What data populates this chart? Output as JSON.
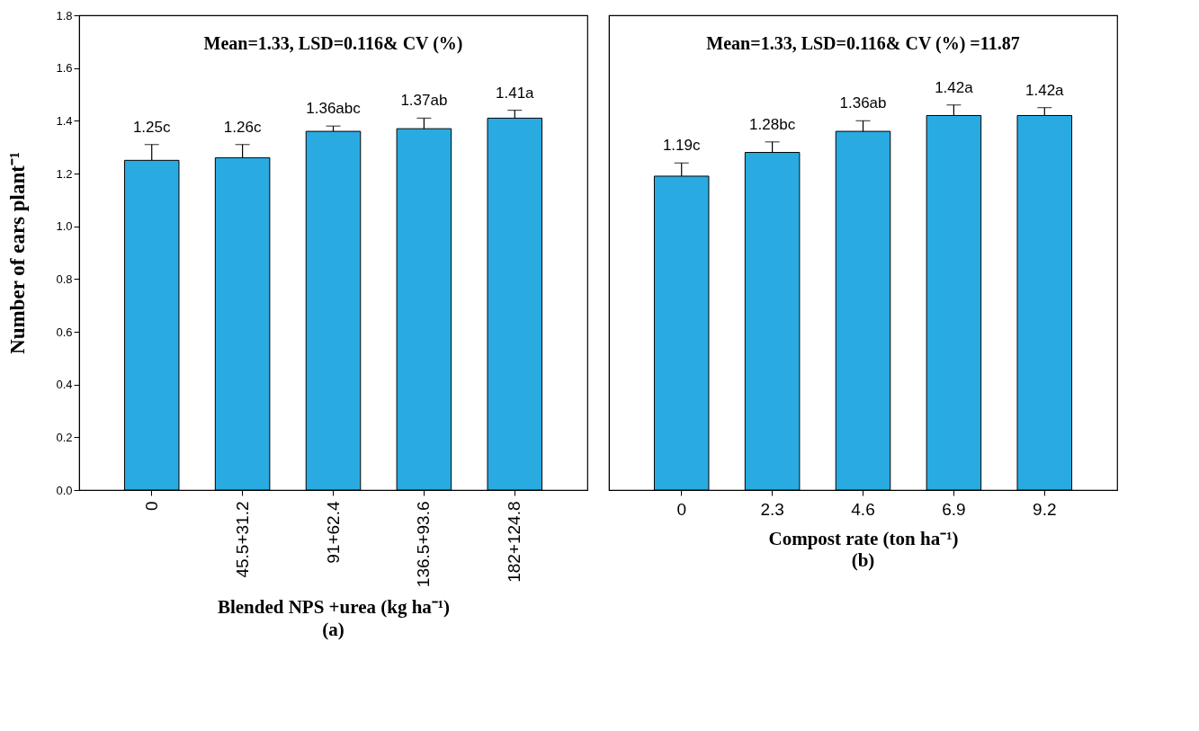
{
  "chart_data": [
    {
      "type": "bar",
      "title": "(a)",
      "xlabel": "Blended NPS +urea (kg ha⁻¹)",
      "ylabel": "Number of ears plant⁻¹",
      "categories": [
        "0",
        "45.5+31.2",
        "91+62.4",
        "136.5+93.6",
        "182+124.8"
      ],
      "series": [
        {
          "color": "#29abe2",
          "values": [
            1.25,
            1.26,
            1.36,
            1.37,
            1.41
          ],
          "errors": [
            [
              1.25,
              1.31
            ],
            [
              1.26,
              1.31
            ],
            [
              1.36,
              1.38
            ],
            [
              1.37,
              1.41
            ],
            [
              1.41,
              1.44
            ]
          ],
          "value_labels": [
            "1.25c",
            "1.26c",
            "1.36abc",
            "1.37ab",
            "1.41a"
          ]
        }
      ],
      "ylim": [
        0,
        1.8
      ],
      "yticks": [
        {
          "value": 0,
          "label": "0.0"
        },
        0.2,
        0.4,
        0.6,
        0.8,
        {
          "value": 1,
          "label": "1.0"
        },
        1.2,
        1.4,
        1.6,
        1.8
      ],
      "annotations": [
        "Mean=1.33, LSD=0.116& CV (%)"
      ],
      "grid": false
    },
    {
      "type": "bar",
      "title": "(b)",
      "xlabel": "Compost rate (ton ha⁻¹)",
      "categories": [
        "0",
        "2.3",
        "4.6",
        "6.9",
        "9.2"
      ],
      "series": [
        {
          "color": "#29abe2",
          "values": [
            1.19,
            1.28,
            1.36,
            1.42,
            1.42
          ],
          "errors": [
            [
              1.19,
              1.24
            ],
            [
              1.28,
              1.32
            ],
            [
              1.36,
              1.4
            ],
            [
              1.42,
              1.46
            ],
            [
              1.42,
              1.45
            ]
          ],
          "value_labels": [
            "1.19c",
            "1.28bc",
            "1.36ab",
            "1.42a",
            "1.42a"
          ]
        }
      ],
      "ylim": [
        0,
        1.8
      ],
      "tick_labels": "x",
      "annotations": [
        "Mean=1.33, LSD=0.116& CV (%) =11.87"
      ],
      "grid": false
    }
  ]
}
